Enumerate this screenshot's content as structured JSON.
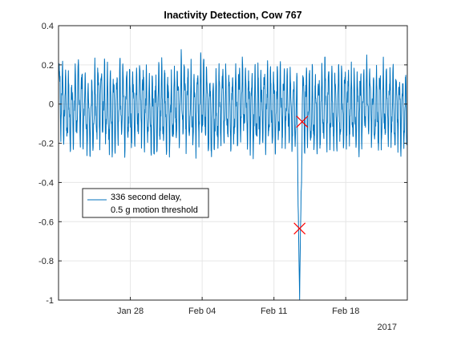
{
  "chart_data": {
    "type": "line",
    "title": "Inactivity Detection, Cow 767",
    "xlabel": "",
    "ylabel": "",
    "xlim": [
      "2017-01-21",
      "2017-02-24"
    ],
    "ylim": [
      -1,
      0.4
    ],
    "xticks": [
      {
        "date": "2017-01-28",
        "label": "Jan 28"
      },
      {
        "date": "2017-02-04",
        "label": "Feb 04"
      },
      {
        "date": "2017-02-11",
        "label": "Feb 11"
      },
      {
        "date": "2017-02-18",
        "label": "Feb 18"
      }
    ],
    "yticks": [
      {
        "value": 0.4,
        "label": "0.4"
      },
      {
        "value": 0.2,
        "label": "0.2"
      },
      {
        "value": 0,
        "label": "0"
      },
      {
        "value": -0.2,
        "label": "-0.2"
      },
      {
        "value": -0.4,
        "label": "-0.4"
      },
      {
        "value": -0.6,
        "label": "-0.6"
      },
      {
        "value": -0.8,
        "label": "-0.8"
      },
      {
        "value": -1,
        "label": "-1"
      }
    ],
    "year_label": "2017",
    "grid": true,
    "legend": {
      "placement": "left-middle",
      "entries": [
        {
          "series": 0,
          "line1": "336 second delay,",
          "line2": "0.5 g motion threshold"
        }
      ]
    },
    "series": [
      {
        "color": "#0072bd",
        "baseline_points": [
          [
            "2017-01-21",
            0.05
          ],
          [
            "2017-01-22",
            -0.05
          ],
          [
            "2017-01-23",
            0.02
          ],
          [
            "2017-01-24",
            -0.08
          ],
          [
            "2017-01-25",
            0.03
          ],
          [
            "2017-01-26",
            -0.06
          ],
          [
            "2017-01-27",
            0.01
          ],
          [
            "2017-01-28",
            -0.04
          ],
          [
            "2017-01-29",
            0.04
          ],
          [
            "2017-01-30",
            -0.07
          ],
          [
            "2017-01-31",
            0.0
          ],
          [
            "2017-02-01",
            -0.05
          ],
          [
            "2017-02-02",
            0.03
          ],
          [
            "2017-02-03",
            -0.04
          ],
          [
            "2017-02-04",
            0.02
          ],
          [
            "2017-02-05",
            -0.06
          ],
          [
            "2017-02-06",
            0.01
          ],
          [
            "2017-02-07",
            -0.03
          ],
          [
            "2017-02-08",
            0.03
          ],
          [
            "2017-02-09",
            -0.05
          ],
          [
            "2017-02-10",
            0.0
          ],
          [
            "2017-02-11",
            -0.03
          ],
          [
            "2017-02-12",
            0.01
          ],
          [
            "2017-02-13",
            -0.05
          ],
          [
            "2017-02-14",
            0.0
          ],
          [
            "2017-02-15",
            -0.06
          ],
          [
            "2017-02-16",
            0.02
          ],
          [
            "2017-02-17",
            -0.04
          ],
          [
            "2017-02-18",
            0.01
          ],
          [
            "2017-02-19",
            -0.05
          ],
          [
            "2017-02-20",
            0.02
          ],
          [
            "2017-02-21",
            -0.04
          ],
          [
            "2017-02-22",
            0.01
          ],
          [
            "2017-02-23",
            -0.03
          ],
          [
            "2017-02-24",
            -0.05
          ]
        ],
        "oscillation_amplitude": 0.16,
        "oscillations_per_day": 3.2,
        "anomaly": {
          "start": "2017-02-13T06:00",
          "bottom": "2017-02-13T12:00",
          "end": "2017-02-13T18:00",
          "min_value": -1.0
        }
      }
    ],
    "markers": [
      {
        "date": "2017-02-13T12:00",
        "value": -0.635,
        "color": "#ff0000",
        "symbol": "x"
      },
      {
        "date": "2017-02-13T18:00",
        "value": -0.09,
        "color": "#ff0000",
        "symbol": "x"
      }
    ]
  }
}
